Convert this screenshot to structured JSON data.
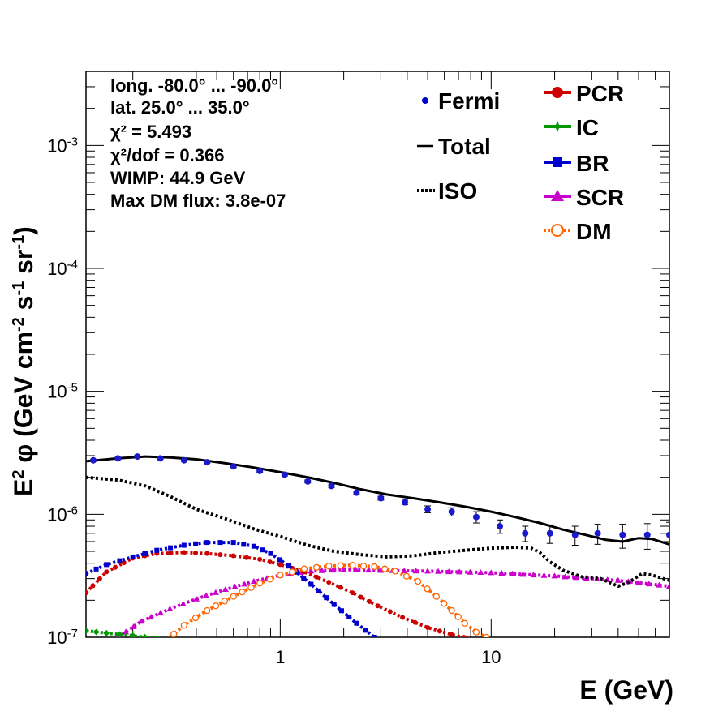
{
  "chart_data": {
    "type": "line",
    "xlabel": "E (GeV)",
    "ylabel": "E^2 φ (GeV cm^-2 s^-1 sr^-1)",
    "x_scale": "log",
    "y_scale": "log",
    "xlim": [
      0.12,
      70
    ],
    "ylim": [
      1e-07,
      0.004
    ],
    "x_tick_labels": [
      {
        "v": 1,
        "t": "1"
      },
      {
        "v": 10,
        "t": "10"
      }
    ],
    "y_tick_labels": [
      {
        "v": 1e-07,
        "base": "10",
        "exp": "-7"
      },
      {
        "v": 1e-06,
        "base": "10",
        "exp": "-6"
      },
      {
        "v": 1e-05,
        "base": "10",
        "exp": "-5"
      },
      {
        "v": 0.0001,
        "base": "10",
        "exp": "-4"
      },
      {
        "v": 0.001,
        "base": "10",
        "exp": "-3"
      }
    ],
    "annotations": [
      "long. -80.0° ... -90.0°",
      "lat. 25.0° ... 35.0°",
      "χ² = 5.493",
      "χ²/dof = 0.366",
      "WIMP: 44.9 GeV",
      "Max DM flux: 3.8e-07"
    ],
    "legend": {
      "left": [
        {
          "name": "Fermi",
          "style": "dot"
        },
        {
          "name": "Total",
          "style": "line"
        },
        {
          "name": "ISO",
          "style": "dotted"
        }
      ],
      "right": [
        {
          "name": "PCR",
          "style": "circle-line",
          "color": "#cc0000"
        },
        {
          "name": "IC",
          "style": "star-line",
          "color": "#009900"
        },
        {
          "name": "BR",
          "style": "square-line",
          "color": "#0000cc"
        },
        {
          "name": "SCR",
          "style": "triangle-line",
          "color": "#cc00cc"
        },
        {
          "name": "DM",
          "style": "open-circle-dotted",
          "color": "#ff6600"
        }
      ]
    },
    "fermi": {
      "x": [
        0.13,
        0.17,
        0.21,
        0.27,
        0.35,
        0.45,
        0.6,
        0.8,
        1.05,
        1.35,
        1.75,
        2.3,
        3.0,
        3.9,
        5.0,
        6.5,
        8.5,
        11.0,
        14.5,
        19.0,
        25.0,
        32.0,
        42.0,
        55.0,
        70.0
      ],
      "y": [
        2.75e-06,
        2.85e-06,
        2.95e-06,
        2.85e-06,
        2.75e-06,
        2.65e-06,
        2.45e-06,
        2.25e-06,
        2.1e-06,
        1.85e-06,
        1.7e-06,
        1.5e-06,
        1.35e-06,
        1.25e-06,
        1.1e-06,
        1.05e-06,
        9.5e-07,
        8e-07,
        7e-07,
        7e-07,
        6.8e-07,
        7e-07,
        6.8e-07,
        6.8e-07,
        6.8e-07
      ],
      "err": [
        5e-08,
        5e-08,
        5e-08,
        5e-08,
        5e-08,
        5e-08,
        5e-08,
        5e-08,
        5e-08,
        5e-08,
        5e-08,
        5e-08,
        5e-08,
        5e-08,
        7e-08,
        8e-08,
        1e-07,
        1e-07,
        1e-07,
        1.2e-07,
        1.2e-07,
        1.3e-07,
        1.5e-07,
        1.6e-07,
        1.8e-07
      ]
    },
    "series": [
      {
        "name": "Total",
        "color": "#000000",
        "style": "solid",
        "x": [
          0.12,
          0.17,
          0.23,
          0.3,
          0.4,
          0.55,
          0.75,
          1.0,
          1.35,
          1.8,
          2.4,
          3.2,
          4.3,
          5.7,
          7.6,
          10.0,
          13.0,
          17.0,
          22.0,
          28.0,
          35.0,
          42.0,
          50.0,
          58.0,
          70.0
        ],
        "y": [
          2.7e-06,
          2.85e-06,
          2.95e-06,
          2.9e-06,
          2.8e-06,
          2.6e-06,
          2.4e-06,
          2.2e-06,
          2e-06,
          1.8e-06,
          1.6e-06,
          1.45e-06,
          1.35e-06,
          1.25e-06,
          1.15e-06,
          1.05e-06,
          9.5e-07,
          8.5e-07,
          7.5e-07,
          6.8e-07,
          6.2e-07,
          6e-07,
          6.4e-07,
          6.3e-07,
          5.7e-07
        ]
      },
      {
        "name": "ISO",
        "color": "#000000",
        "style": "dotted",
        "x": [
          0.12,
          0.17,
          0.23,
          0.3,
          0.4,
          0.55,
          0.75,
          1.0,
          1.35,
          1.8,
          2.4,
          3.2,
          4.3,
          5.7,
          7.6,
          10.0,
          13.0,
          15.5,
          17.0,
          19.0,
          22.0,
          27.0,
          33.0,
          40.0,
          45.0,
          52.0,
          58.0,
          70.0
        ],
        "y": [
          2e-06,
          1.9e-06,
          1.7e-06,
          1.4e-06,
          1.1e-06,
          9.2e-07,
          7.6e-07,
          6.6e-07,
          5.6e-07,
          5e-07,
          4.7e-07,
          4.5e-07,
          4.6e-07,
          4.9e-07,
          5.1e-07,
          5.3e-07,
          5.4e-07,
          5.3e-07,
          4.9e-07,
          4.1e-07,
          3.5e-07,
          3.1e-07,
          3e-07,
          2.6e-07,
          2.8e-07,
          3.3e-07,
          3.2e-07,
          2.9e-07
        ]
      },
      {
        "name": "PCR",
        "color": "#cc0000",
        "style": "dotted",
        "x": [
          0.12,
          0.15,
          0.2,
          0.26,
          0.35,
          0.45,
          0.6,
          0.8,
          1.0,
          1.3,
          1.7,
          2.2,
          2.9,
          3.8,
          5.0,
          6.5,
          8.5,
          10.5
        ],
        "y": [
          2.3e-07,
          3.4e-07,
          4.4e-07,
          4.8e-07,
          4.9e-07,
          4.8e-07,
          4.6e-07,
          4.3e-07,
          3.9e-07,
          3.4e-07,
          2.8e-07,
          2.3e-07,
          1.8e-07,
          1.45e-07,
          1.2e-07,
          1.05e-07,
          9.5e-08,
          8.5e-08
        ]
      },
      {
        "name": "IC",
        "color": "#009900",
        "style": "dotted",
        "x": [
          0.12,
          0.15,
          0.2,
          0.26,
          0.3
        ],
        "y": [
          1.13e-07,
          1.08e-07,
          1.03e-07,
          9.8e-08,
          9.5e-08
        ]
      },
      {
        "name": "BR",
        "color": "#0000cc",
        "style": "dotted",
        "x": [
          0.12,
          0.15,
          0.2,
          0.26,
          0.35,
          0.45,
          0.6,
          0.75,
          0.9,
          1.1,
          1.4,
          1.8,
          2.3,
          2.8,
          3.4,
          4.0
        ],
        "y": [
          3.3e-07,
          3.9e-07,
          4.5e-07,
          5.1e-07,
          5.6e-07,
          5.9e-07,
          5.9e-07,
          5.5e-07,
          4.8e-07,
          3.8e-07,
          2.7e-07,
          1.85e-07,
          1.3e-07,
          1e-07,
          8e-08,
          6.5e-08
        ]
      },
      {
        "name": "SCR",
        "color": "#cc00cc",
        "style": "dotted",
        "x": [
          0.17,
          0.22,
          0.3,
          0.4,
          0.55,
          0.75,
          1.0,
          1.4,
          2.0,
          3.0,
          5.0,
          10.0,
          20.0,
          40.0,
          70.0
        ],
        "y": [
          1e-07,
          1.35e-07,
          1.7e-07,
          2.05e-07,
          2.45e-07,
          2.85e-07,
          3.2e-07,
          3.45e-07,
          3.55e-07,
          3.5e-07,
          3.45e-07,
          3.35e-07,
          3.15e-07,
          2.9e-07,
          2.6e-07
        ]
      },
      {
        "name": "DM",
        "color": "#ff6600",
        "style": "dotted",
        "x": [
          0.28,
          0.35,
          0.45,
          0.6,
          0.8,
          1.0,
          1.3,
          1.7,
          2.2,
          2.8,
          3.5,
          4.5,
          5.5,
          6.5,
          7.5,
          8.5,
          9.5,
          10.2
        ],
        "y": [
          9e-08,
          1.25e-07,
          1.65e-07,
          2.15e-07,
          2.75e-07,
          3.2e-07,
          3.6e-07,
          3.8e-07,
          3.85e-07,
          3.75e-07,
          3.45e-07,
          2.85e-07,
          2.15e-07,
          1.65e-07,
          1.3e-07,
          1.1e-07,
          1e-07,
          9e-08
        ]
      }
    ]
  }
}
